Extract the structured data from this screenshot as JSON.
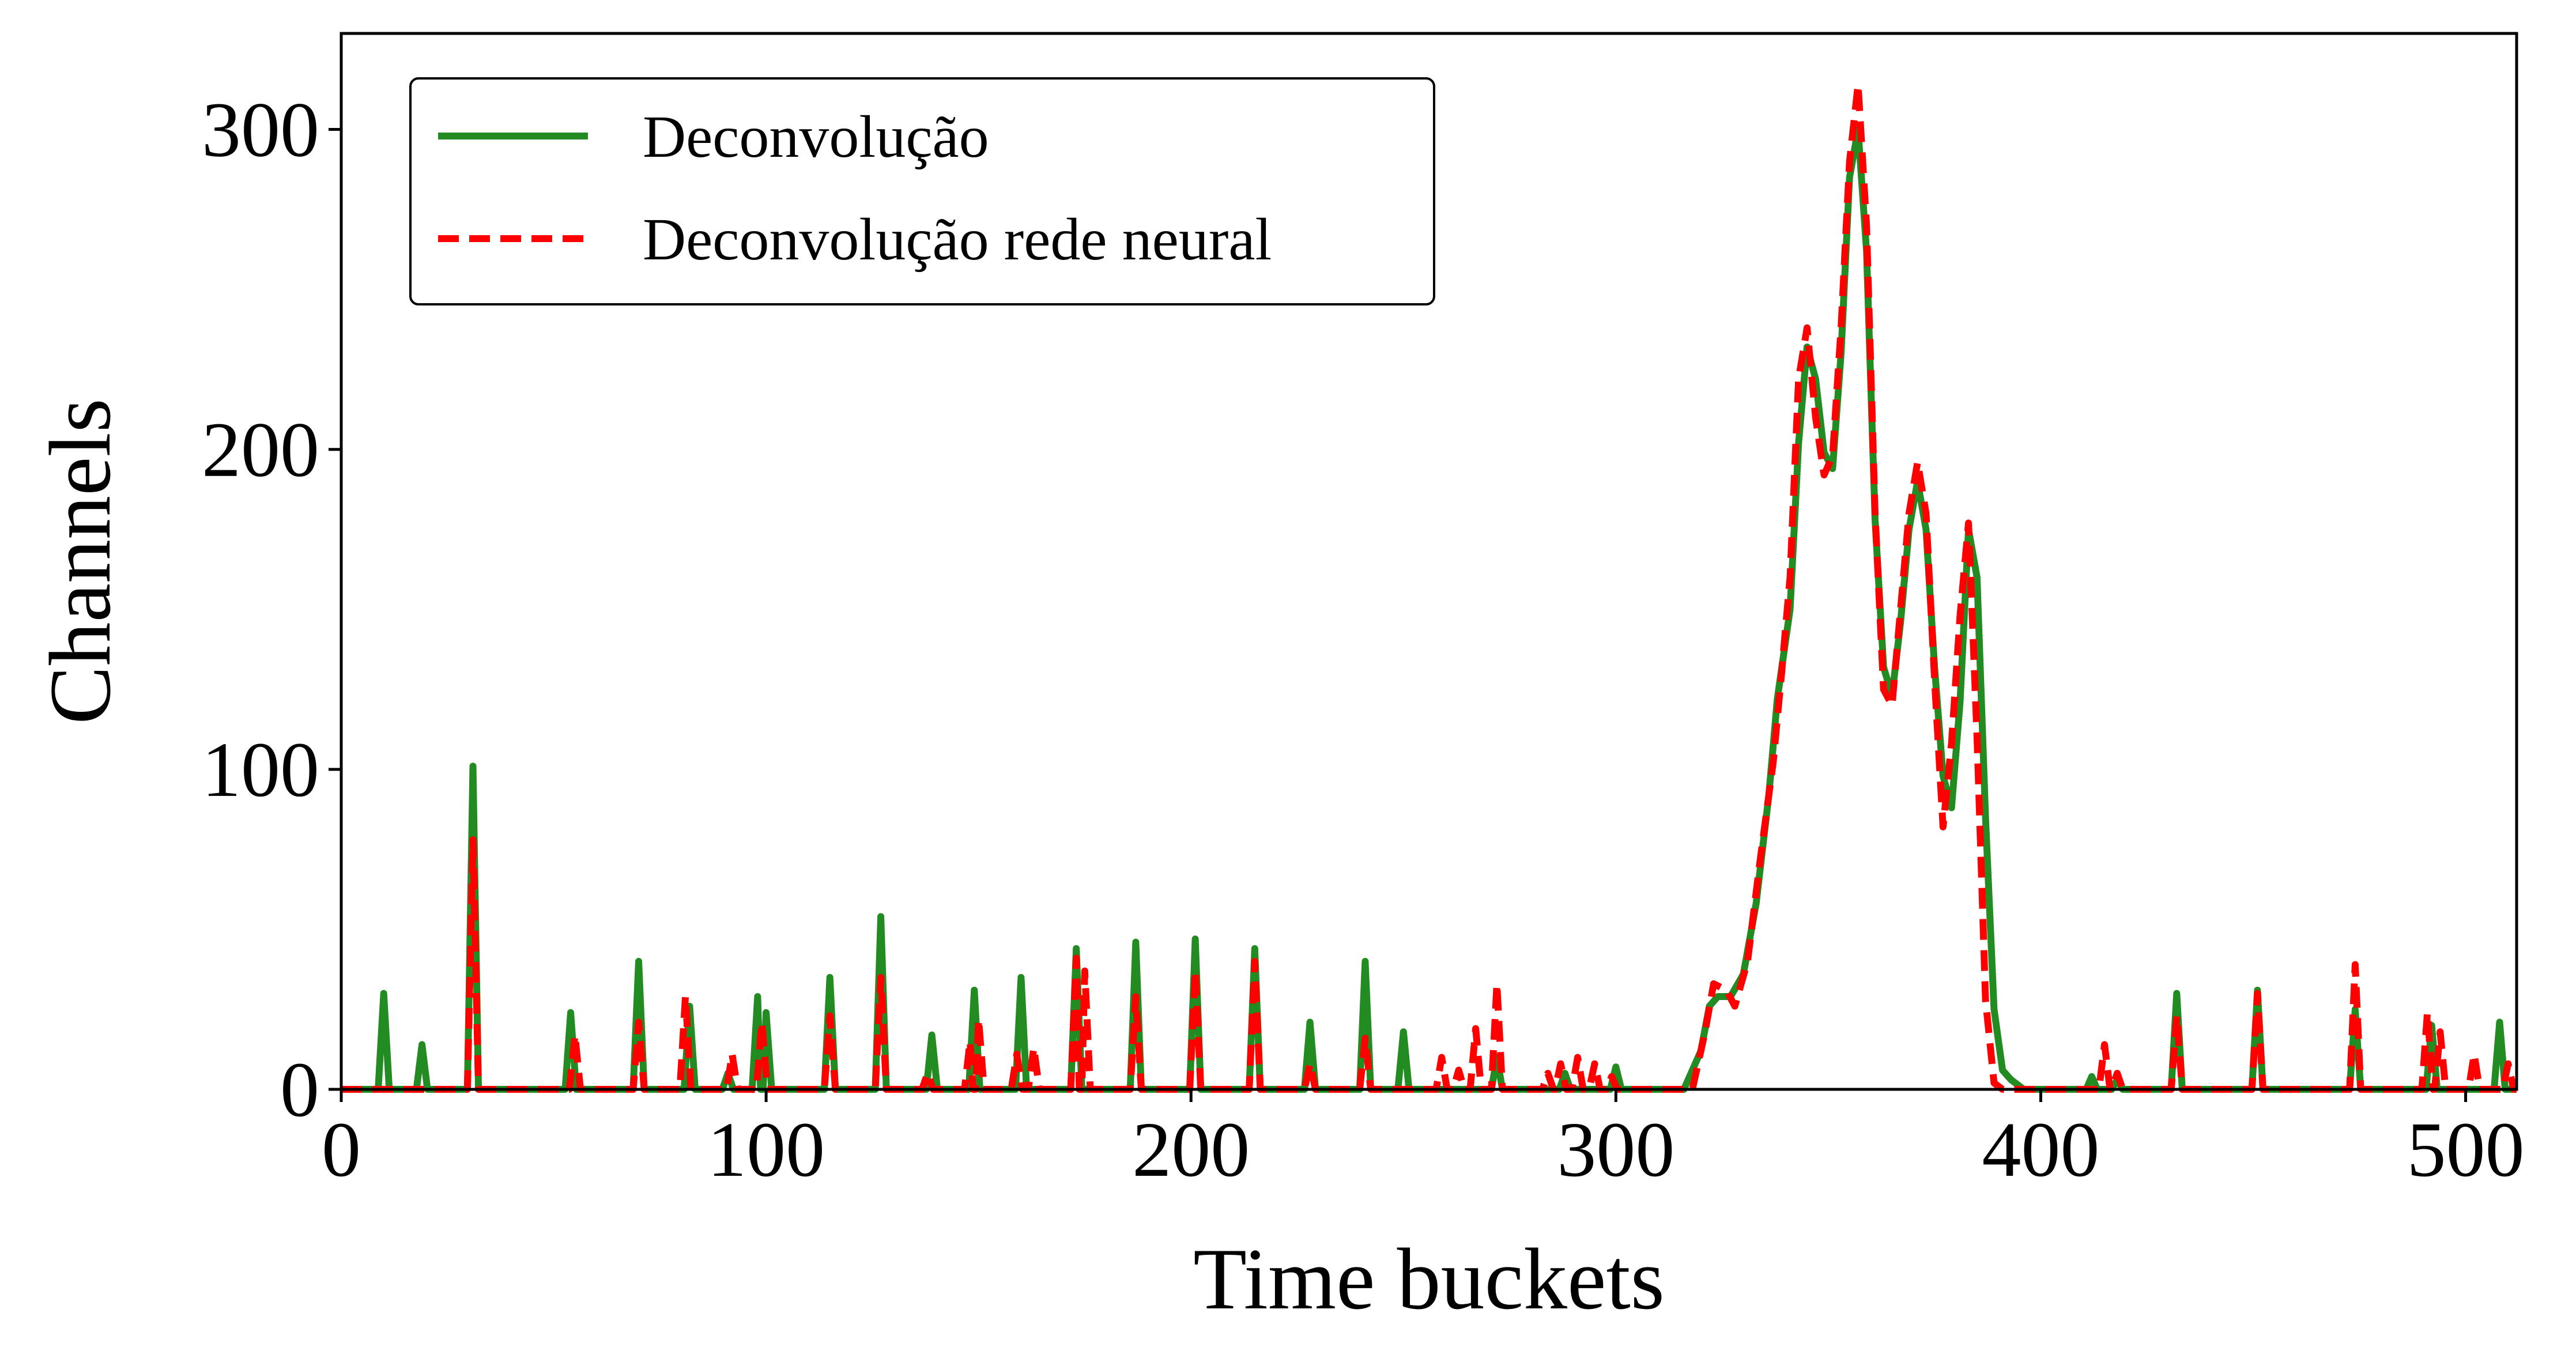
{
  "chart_data": {
    "type": "line",
    "title": "",
    "xlabel": "Time buckets",
    "ylabel": "Channels",
    "xlim": [
      0,
      512
    ],
    "ylim": [
      0,
      330
    ],
    "xticks": [
      0,
      100,
      200,
      300,
      400,
      500
    ],
    "yticks": [
      0,
      100,
      200,
      300
    ],
    "grid": false,
    "legend_position": "top-left",
    "series": [
      {
        "name": "Deconvolução",
        "color": "#228B22",
        "style": "solid",
        "spikes": [
          [
            10,
            30
          ],
          [
            19,
            14
          ],
          [
            31,
            101
          ],
          [
            54,
            24
          ],
          [
            70,
            40
          ],
          [
            82,
            26
          ],
          [
            91,
            5
          ],
          [
            98,
            29
          ],
          [
            100,
            24
          ],
          [
            115,
            35
          ],
          [
            127,
            54
          ],
          [
            139,
            17
          ],
          [
            149,
            31
          ],
          [
            160,
            35
          ],
          [
            173,
            44
          ],
          [
            187,
            46
          ],
          [
            201,
            47
          ],
          [
            215,
            44
          ],
          [
            228,
            21
          ],
          [
            241,
            40
          ],
          [
            250,
            18
          ],
          [
            272,
            10
          ],
          [
            288,
            5
          ],
          [
            300,
            7
          ],
          [
            412,
            4
          ],
          [
            418,
            3
          ],
          [
            432,
            30
          ],
          [
            451,
            31
          ],
          [
            474,
            25
          ],
          [
            492,
            20
          ],
          [
            508,
            21
          ]
        ],
        "peak": [
          [
            316,
            0
          ],
          [
            320,
            12
          ],
          [
            322,
            26
          ],
          [
            324,
            29
          ],
          [
            327,
            29
          ],
          [
            330,
            36
          ],
          [
            333,
            58
          ],
          [
            336,
            92
          ],
          [
            338,
            122
          ],
          [
            341,
            150
          ],
          [
            343,
            202
          ],
          [
            345,
            232
          ],
          [
            347,
            222
          ],
          [
            349,
            199
          ],
          [
            351,
            194
          ],
          [
            353,
            230
          ],
          [
            355,
            285
          ],
          [
            357,
            300
          ],
          [
            359,
            262
          ],
          [
            361,
            178
          ],
          [
            363,
            132
          ],
          [
            365,
            123
          ],
          [
            367,
            146
          ],
          [
            369,
            175
          ],
          [
            371,
            190
          ],
          [
            373,
            175
          ],
          [
            375,
            132
          ],
          [
            377,
            98
          ],
          [
            379,
            88
          ],
          [
            381,
            121
          ],
          [
            383,
            175
          ],
          [
            385,
            160
          ],
          [
            387,
            85
          ],
          [
            389,
            25
          ],
          [
            391,
            6
          ],
          [
            393,
            3
          ],
          [
            396,
            0
          ]
        ]
      },
      {
        "name": "Deconvolução rede neural",
        "color": "#FF0000",
        "style": "dashed",
        "spikes": [
          [
            31,
            78
          ],
          [
            55,
            17
          ],
          [
            70,
            21
          ],
          [
            81,
            29
          ],
          [
            92,
            11
          ],
          [
            99,
            21
          ],
          [
            115,
            23
          ],
          [
            127,
            35
          ],
          [
            138,
            5
          ],
          [
            148,
            15
          ],
          [
            150,
            22
          ],
          [
            159,
            11
          ],
          [
            163,
            13
          ],
          [
            173,
            41
          ],
          [
            175,
            37
          ],
          [
            187,
            29
          ],
          [
            201,
            37
          ],
          [
            215,
            40
          ],
          [
            228,
            8
          ],
          [
            241,
            16
          ],
          [
            259,
            10
          ],
          [
            263,
            6
          ],
          [
            267,
            19
          ],
          [
            272,
            33
          ],
          [
            284,
            5
          ],
          [
            287,
            8
          ],
          [
            291,
            10
          ],
          [
            295,
            8
          ],
          [
            299,
            4
          ],
          [
            415,
            14
          ],
          [
            418,
            5
          ],
          [
            432,
            23
          ],
          [
            451,
            30
          ],
          [
            474,
            39
          ],
          [
            491,
            24
          ],
          [
            494,
            18
          ],
          [
            502,
            11
          ],
          [
            510,
            8
          ]
        ],
        "peak": [
          [
            318,
            0
          ],
          [
            321,
            18
          ],
          [
            323,
            33
          ],
          [
            326,
            31
          ],
          [
            328,
            26
          ],
          [
            331,
            40
          ],
          [
            334,
            72
          ],
          [
            337,
            102
          ],
          [
            339,
            130
          ],
          [
            341,
            160
          ],
          [
            343,
            222
          ],
          [
            345,
            238
          ],
          [
            347,
            210
          ],
          [
            349,
            192
          ],
          [
            351,
            198
          ],
          [
            353,
            238
          ],
          [
            355,
            290
          ],
          [
            357,
            314
          ],
          [
            359,
            270
          ],
          [
            361,
            180
          ],
          [
            363,
            125
          ],
          [
            365,
            120
          ],
          [
            367,
            150
          ],
          [
            369,
            180
          ],
          [
            371,
            196
          ],
          [
            373,
            180
          ],
          [
            375,
            128
          ],
          [
            377,
            82
          ],
          [
            379,
            108
          ],
          [
            381,
            148
          ],
          [
            383,
            177
          ],
          [
            385,
            110
          ],
          [
            387,
            28
          ],
          [
            389,
            2
          ],
          [
            391,
            0
          ]
        ]
      }
    ]
  }
}
